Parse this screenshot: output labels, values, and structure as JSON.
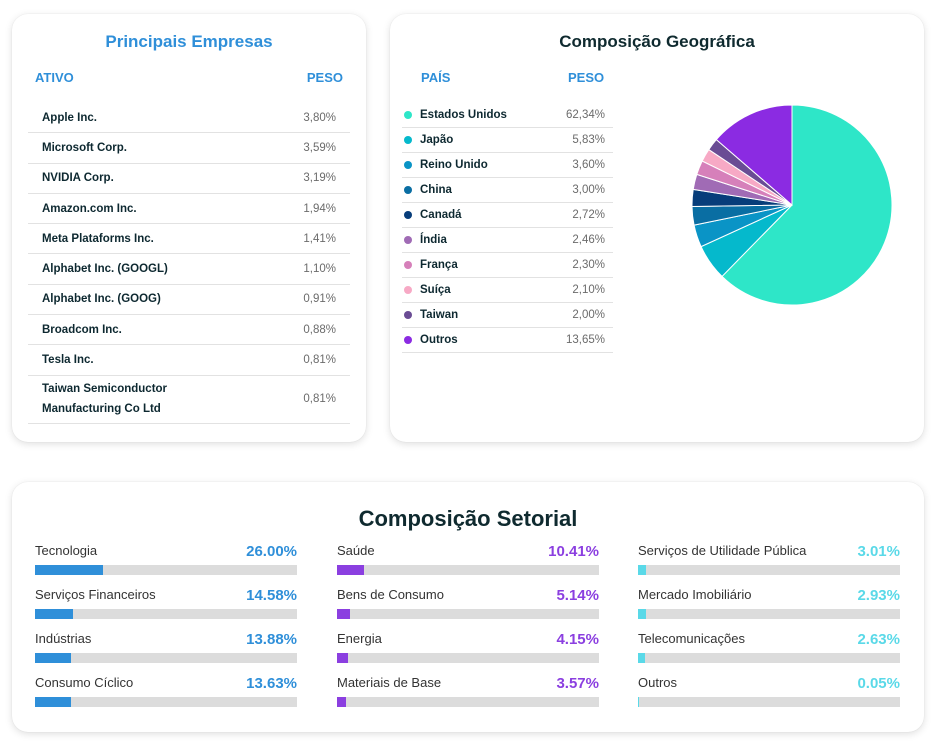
{
  "companies": {
    "title": "Principais Empresas",
    "col_asset": "ATIVO",
    "col_weight": "PESO",
    "rows": [
      {
        "name": "Apple Inc.",
        "weight": "3,80%"
      },
      {
        "name": "Microsoft Corp.",
        "weight": "3,59%"
      },
      {
        "name": "NVIDIA Corp.",
        "weight": "3,19%"
      },
      {
        "name": "Amazon.com Inc.",
        "weight": "1,94%"
      },
      {
        "name": "Meta Plataforms Inc.",
        "weight": "1,41%"
      },
      {
        "name": "Alphabet Inc. (GOOGL)",
        "weight": "1,10%"
      },
      {
        "name": "Alphabet Inc. (GOOG)",
        "weight": "0,91%"
      },
      {
        "name": "Broadcom Inc.",
        "weight": "0,88%"
      },
      {
        "name": "Tesla Inc.",
        "weight": "0,81%"
      },
      {
        "name": "Taiwan Semiconductor Manufacturing Co Ltd",
        "weight": "0,81%"
      }
    ]
  },
  "geo": {
    "title": "Composição Geográfica",
    "col_country": "PAÍS",
    "col_weight": "PESO"
  },
  "chart_data": [
    {
      "type": "pie",
      "title": "Composição Geográfica",
      "labels": [
        "Estados Unidos",
        "Japão",
        "Reino Unido",
        "China",
        "Canadá",
        "Índia",
        "França",
        "Suíça",
        "Taiwan",
        "Outros"
      ],
      "display": [
        "62,34%",
        "5,83%",
        "3,60%",
        "3,00%",
        "2,72%",
        "2,46%",
        "2,30%",
        "2,10%",
        "2,00%",
        "13,65%"
      ],
      "values": [
        62.34,
        5.83,
        3.6,
        3.0,
        2.72,
        2.46,
        2.3,
        2.1,
        2.0,
        13.65
      ],
      "colors": [
        "#2ee6c8",
        "#05b9cc",
        "#0a94c6",
        "#0a6ea3",
        "#073d7a",
        "#a06bb5",
        "#d680ba",
        "#f7a9c5",
        "#6a4c94",
        "#8b2be2"
      ],
      "legend": "left"
    },
    {
      "type": "bar",
      "title": "Composição Setorial",
      "orientation": "horizontal",
      "xlim": [
        0,
        100
      ],
      "series": [
        {
          "label": "Tecnologia",
          "value": 26.0,
          "display": "26.00%",
          "color": "#2f8fd9"
        },
        {
          "label": "Serviços Financeiros",
          "value": 14.58,
          "display": "14.58%",
          "color": "#2f8fd9"
        },
        {
          "label": "Indústrias",
          "value": 13.88,
          "display": "13.88%",
          "color": "#2f8fd9"
        },
        {
          "label": "Consumo Cíclico",
          "value": 13.63,
          "display": "13.63%",
          "color": "#2f8fd9"
        },
        {
          "label": "Saúde",
          "value": 10.41,
          "display": "10.41%",
          "color": "#8b3fe0"
        },
        {
          "label": "Bens de Consumo",
          "value": 5.14,
          "display": "5.14%",
          "color": "#8b3fe0"
        },
        {
          "label": "Energia",
          "value": 4.15,
          "display": "4.15%",
          "color": "#8b3fe0"
        },
        {
          "label": "Materiais de Base",
          "value": 3.57,
          "display": "3.57%",
          "color": "#8b3fe0"
        },
        {
          "label": "Serviços de Utilidade Pública",
          "value": 3.01,
          "display": "3.01%",
          "color": "#5ad9e8"
        },
        {
          "label": "Mercado Imobiliário",
          "value": 2.93,
          "display": "2.93%",
          "color": "#5ad9e8"
        },
        {
          "label": "Telecomunicações",
          "value": 2.63,
          "display": "2.63%",
          "color": "#5ad9e8"
        },
        {
          "label": "Outros",
          "value": 0.05,
          "display": "0.05%",
          "color": "#5ad9e8"
        }
      ]
    }
  ]
}
